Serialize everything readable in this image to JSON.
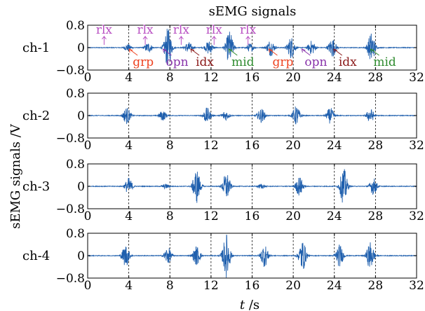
{
  "chart_data": {
    "type": "line",
    "title": "sEMG signals",
    "xlabel": "t /s",
    "ylabel": "sEMG signals /V",
    "xlim": [
      0,
      32
    ],
    "ylim": [
      -0.8,
      0.8
    ],
    "x_ticks": [
      "0",
      "4",
      "8",
      "12",
      "16",
      "20",
      "24",
      "28",
      "32"
    ],
    "y_ticks": [
      "0.8",
      "0",
      "−0.8"
    ],
    "grid": "vertical dashed at each x tick",
    "line_color": "#1f5fad",
    "series": [
      {
        "name": "ch-1",
        "bursts": [
          {
            "t": 3.9,
            "amp": 0.12
          },
          {
            "t": 5.9,
            "amp": 0.18
          },
          {
            "t": 7.8,
            "amp": 0.7
          },
          {
            "t": 9.8,
            "amp": 0.2
          },
          {
            "t": 11.8,
            "amp": 0.25
          },
          {
            "t": 13.8,
            "amp": 0.6
          },
          {
            "t": 15.8,
            "amp": 0.15
          },
          {
            "t": 17.8,
            "amp": 0.3
          },
          {
            "t": 19.8,
            "amp": 0.4
          },
          {
            "t": 21.8,
            "amp": 0.25
          },
          {
            "t": 23.8,
            "amp": 0.35
          },
          {
            "t": 27.6,
            "amp": 0.55
          }
        ]
      },
      {
        "name": "ch-2",
        "bursts": [
          {
            "t": 3.8,
            "amp": 0.3
          },
          {
            "t": 7.3,
            "amp": 0.18
          },
          {
            "t": 11.6,
            "amp": 0.28
          },
          {
            "t": 13.4,
            "amp": 0.18
          },
          {
            "t": 16.9,
            "amp": 0.25
          },
          {
            "t": 20.3,
            "amp": 0.35
          },
          {
            "t": 23.6,
            "amp": 0.28
          },
          {
            "t": 27.5,
            "amp": 0.25
          }
        ]
      },
      {
        "name": "ch-3",
        "bursts": [
          {
            "t": 4.0,
            "amp": 0.3
          },
          {
            "t": 7.6,
            "amp": 0.08
          },
          {
            "t": 10.6,
            "amp": 0.62
          },
          {
            "t": 13.5,
            "amp": 0.5
          },
          {
            "t": 16.9,
            "amp": 0.08
          },
          {
            "t": 20.6,
            "amp": 0.35
          },
          {
            "t": 24.9,
            "amp": 0.65
          },
          {
            "t": 27.8,
            "amp": 0.3
          }
        ]
      },
      {
        "name": "ch-4",
        "bursts": [
          {
            "t": 3.7,
            "amp": 0.4
          },
          {
            "t": 7.8,
            "amp": 0.3
          },
          {
            "t": 10.6,
            "amp": 0.35
          },
          {
            "t": 13.5,
            "amp": 0.78
          },
          {
            "t": 17.2,
            "amp": 0.4
          },
          {
            "t": 20.9,
            "amp": 0.55
          },
          {
            "t": 24.5,
            "amp": 0.4
          },
          {
            "t": 27.5,
            "amp": 0.5
          }
        ]
      }
    ],
    "annotations": [
      {
        "text": "rlx",
        "t": 1.6,
        "color": "#b84fc2",
        "pos": "top"
      },
      {
        "text": "rlx",
        "t": 5.6,
        "color": "#b84fc2",
        "pos": "top"
      },
      {
        "text": "rlx",
        "t": 9.1,
        "color": "#b84fc2",
        "pos": "top"
      },
      {
        "text": "rlx",
        "t": 12.3,
        "color": "#b84fc2",
        "pos": "top"
      },
      {
        "text": "rlx",
        "t": 15.6,
        "color": "#b84fc2",
        "pos": "top"
      },
      {
        "text": "grp",
        "t": 5.4,
        "color": "#ee4422",
        "pos": "bottom"
      },
      {
        "text": "opn",
        "t": 8.7,
        "color": "#8833aa",
        "pos": "bottom"
      },
      {
        "text": "idx",
        "t": 11.4,
        "color": "#8b1a1a",
        "pos": "bottom"
      },
      {
        "text": "mid",
        "t": 15.1,
        "color": "#2e8b2e",
        "pos": "bottom"
      },
      {
        "text": "grp",
        "t": 19.0,
        "color": "#ee4422",
        "pos": "bottom"
      },
      {
        "text": "opn",
        "t": 22.2,
        "color": "#8833aa",
        "pos": "bottom"
      },
      {
        "text": "idx",
        "t": 25.3,
        "color": "#8b1a1a",
        "pos": "bottom"
      },
      {
        "text": "mid",
        "t": 28.9,
        "color": "#2e8b2e",
        "pos": "bottom"
      }
    ]
  }
}
